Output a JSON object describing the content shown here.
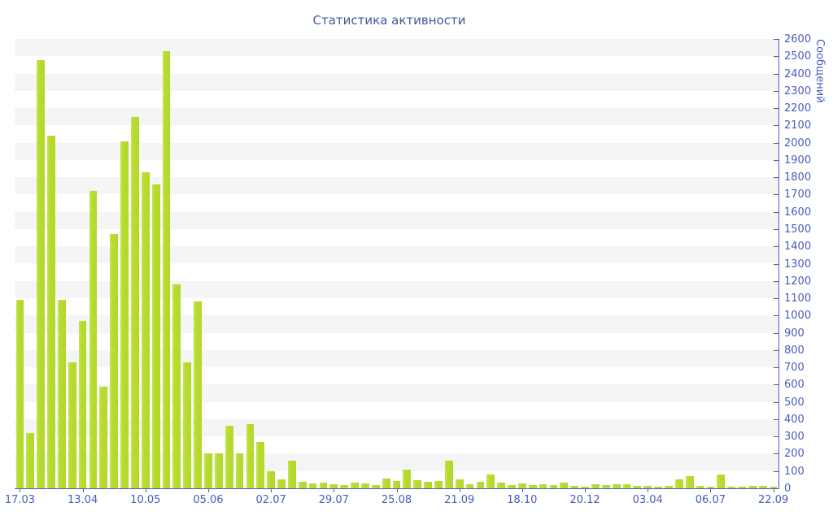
{
  "title": "Статистика активности",
  "colors": {
    "bar": "#b7dc30",
    "axis_line": "#4a5cb9",
    "tick_text": "#4a5bbd",
    "title_text": "#3e5a9b",
    "band": "#f5f5f6",
    "background": "#ffffff"
  },
  "y_axis": {
    "label": "Сообщений",
    "side": "right",
    "tick_labels": [
      "0",
      "100",
      "200",
      "300",
      "400",
      "500",
      "600",
      "700",
      "800",
      "900",
      "1000",
      "1100",
      "1200",
      "1300",
      "1400",
      "1500",
      "1600",
      "1700",
      "1800",
      "1900",
      "2000",
      "2100",
      "2200",
      "2300",
      "2400",
      "2500",
      "2600"
    ]
  },
  "x_axis": {
    "tick_labels": [
      "17.03",
      "13.04",
      "10.05",
      "05.06",
      "02.07",
      "29.07",
      "25.08",
      "21.09",
      "18.10",
      "20.12",
      "03.04",
      "06.07",
      "22.09"
    ],
    "label_every_n_bars": 6
  },
  "chart_data": {
    "type": "bar",
    "title": "Статистика активности",
    "xlabel": "",
    "ylabel": "Сообщений",
    "ylim": [
      0,
      2600
    ],
    "ytick_step": 100,
    "grid": "alternating horizontal bands every 100 units",
    "legend": "none",
    "bar_count": 73,
    "x_tick_labels": [
      "17.03",
      "13.04",
      "10.05",
      "05.06",
      "02.07",
      "29.07",
      "25.08",
      "21.09",
      "18.10",
      "20.12",
      "03.04",
      "06.07",
      "22.09"
    ],
    "x_tick_positions": [
      0,
      6,
      12,
      18,
      24,
      30,
      36,
      42,
      48,
      54,
      60,
      66,
      72
    ],
    "values": [
      1090,
      320,
      2480,
      2040,
      1090,
      730,
      970,
      1720,
      590,
      1470,
      2010,
      2150,
      1830,
      1760,
      2530,
      1180,
      730,
      1080,
      200,
      200,
      360,
      200,
      370,
      270,
      100,
      50,
      160,
      40,
      30,
      34,
      25,
      20,
      33,
      27,
      18,
      55,
      44,
      110,
      47,
      40,
      44,
      160,
      52,
      25,
      39,
      78,
      31,
      19,
      27,
      19,
      25,
      19,
      31,
      16,
      10,
      22,
      19,
      22,
      25,
      16,
      13,
      9,
      13,
      53,
      72,
      16,
      11,
      78,
      8,
      11,
      13,
      13,
      11
    ]
  }
}
